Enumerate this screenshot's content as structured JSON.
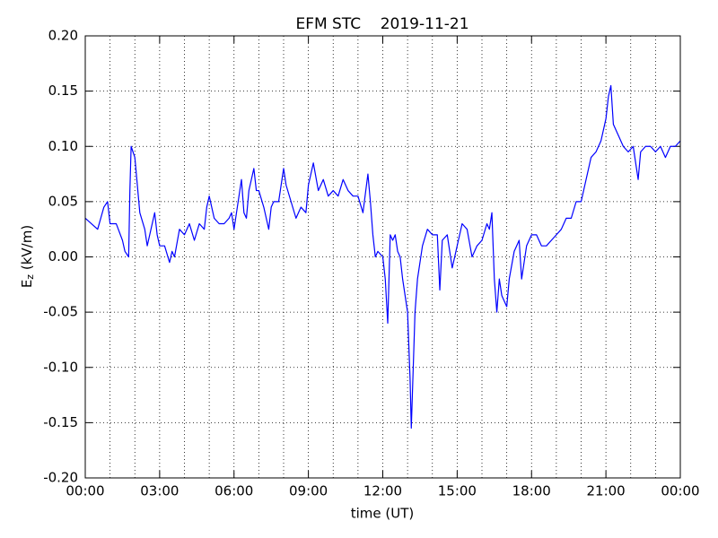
{
  "chart_data": {
    "type": "line",
    "title": "EFM STC    2019-11-21",
    "xlabel": "time (UT)",
    "ylabel": [
      "E",
      "z",
      " (kV/m)"
    ],
    "color": "#0000ff",
    "x": [
      0.0,
      0.25,
      0.5,
      0.75,
      0.9,
      1.0,
      1.25,
      1.5,
      1.6,
      1.75,
      1.8,
      1.85,
      2.0,
      2.2,
      2.4,
      2.5,
      2.6,
      2.7,
      2.8,
      2.9,
      3.0,
      3.2,
      3.4,
      3.5,
      3.6,
      3.8,
      4.0,
      4.2,
      4.4,
      4.6,
      4.8,
      4.9,
      5.0,
      5.2,
      5.4,
      5.6,
      5.8,
      5.9,
      6.0,
      6.2,
      6.3,
      6.4,
      6.5,
      6.6,
      6.8,
      6.9,
      7.0,
      7.2,
      7.4,
      7.5,
      7.6,
      7.8,
      8.0,
      8.1,
      8.3,
      8.5,
      8.7,
      8.9,
      9.0,
      9.2,
      9.4,
      9.6,
      9.8,
      10.0,
      10.2,
      10.4,
      10.6,
      10.8,
      11.0,
      11.2,
      11.4,
      11.5,
      11.6,
      11.7,
      11.8,
      12.0,
      12.1,
      12.2,
      12.3,
      12.4,
      12.5,
      12.6,
      12.7,
      12.8,
      13.0,
      13.1,
      13.15,
      13.3,
      13.4,
      13.6,
      13.8,
      14.0,
      14.2,
      14.3,
      14.4,
      14.6,
      14.8,
      15.0,
      15.2,
      15.4,
      15.6,
      15.8,
      16.0,
      16.2,
      16.3,
      16.4,
      16.5,
      16.6,
      16.7,
      16.8,
      17.0,
      17.1,
      17.3,
      17.5,
      17.6,
      17.8,
      18.0,
      18.2,
      18.4,
      18.6,
      18.8,
      19.0,
      19.2,
      19.4,
      19.6,
      19.8,
      20.0,
      20.2,
      20.4,
      20.6,
      20.8,
      21.0,
      21.1,
      21.2,
      21.3,
      21.5,
      21.7,
      21.9,
      22.1,
      22.3,
      22.4,
      22.6,
      22.8,
      23.0,
      23.2,
      23.4,
      23.6,
      23.8,
      24.0
    ],
    "values": [
      0.035,
      0.03,
      0.025,
      0.045,
      0.05,
      0.03,
      0.03,
      0.015,
      0.005,
      0.0,
      0.06,
      0.1,
      0.09,
      0.04,
      0.025,
      0.01,
      0.02,
      0.03,
      0.04,
      0.02,
      0.01,
      0.01,
      -0.005,
      0.005,
      0.0,
      0.025,
      0.02,
      0.03,
      0.015,
      0.03,
      0.025,
      0.045,
      0.055,
      0.035,
      0.03,
      0.03,
      0.035,
      0.04,
      0.025,
      0.055,
      0.07,
      0.04,
      0.035,
      0.06,
      0.08,
      0.06,
      0.06,
      0.045,
      0.025,
      0.045,
      0.05,
      0.05,
      0.08,
      0.065,
      0.05,
      0.035,
      0.045,
      0.04,
      0.065,
      0.085,
      0.06,
      0.07,
      0.055,
      0.06,
      0.055,
      0.07,
      0.06,
      0.055,
      0.055,
      0.04,
      0.075,
      0.05,
      0.02,
      0.0,
      0.005,
      0.0,
      -0.02,
      -0.06,
      0.02,
      0.015,
      0.02,
      0.005,
      0.0,
      -0.02,
      -0.05,
      -0.11,
      -0.155,
      -0.05,
      -0.02,
      0.01,
      0.025,
      0.02,
      0.02,
      -0.03,
      0.015,
      0.02,
      -0.01,
      0.01,
      0.03,
      0.025,
      0.0,
      0.01,
      0.015,
      0.03,
      0.025,
      0.04,
      -0.02,
      -0.05,
      -0.02,
      -0.035,
      -0.045,
      -0.02,
      0.005,
      0.015,
      -0.02,
      0.01,
      0.02,
      0.02,
      0.01,
      0.01,
      0.015,
      0.02,
      0.025,
      0.035,
      0.035,
      0.05,
      0.05,
      0.07,
      0.09,
      0.095,
      0.105,
      0.125,
      0.145,
      0.155,
      0.12,
      0.11,
      0.1,
      0.095,
      0.1,
      0.07,
      0.095,
      0.1,
      0.1,
      0.095,
      0.1,
      0.09,
      0.1,
      0.1,
      0.105
    ],
    "xlim": [
      0,
      24
    ],
    "xticks": [
      {
        "value": 0,
        "label": "00:00"
      },
      {
        "value": 3,
        "label": "03:00"
      },
      {
        "value": 6,
        "label": "06:00"
      },
      {
        "value": 9,
        "label": "09:00"
      },
      {
        "value": 12,
        "label": "12:00"
      },
      {
        "value": 15,
        "label": "15:00"
      },
      {
        "value": 18,
        "label": "18:00"
      },
      {
        "value": 21,
        "label": "21:00"
      },
      {
        "value": 24,
        "label": "00:00"
      }
    ],
    "xgrid": [
      0,
      1,
      2,
      3,
      4,
      5,
      6,
      7,
      8,
      9,
      10,
      11,
      12,
      13,
      14,
      15,
      16,
      17,
      18,
      19,
      20,
      21,
      22,
      23,
      24
    ],
    "ylim": [
      -0.2,
      0.2
    ],
    "yticks": [
      {
        "value": -0.2,
        "label": "-0.20"
      },
      {
        "value": -0.15,
        "label": "-0.15"
      },
      {
        "value": -0.1,
        "label": "-0.10"
      },
      {
        "value": -0.05,
        "label": "-0.05"
      },
      {
        "value": 0,
        "label": "0.00"
      },
      {
        "value": 0.05,
        "label": "0.05"
      },
      {
        "value": 0.1,
        "label": "0.10"
      },
      {
        "value": 0.15,
        "label": "0.15"
      },
      {
        "value": 0.2,
        "label": "0.20"
      }
    ],
    "grid": true
  }
}
